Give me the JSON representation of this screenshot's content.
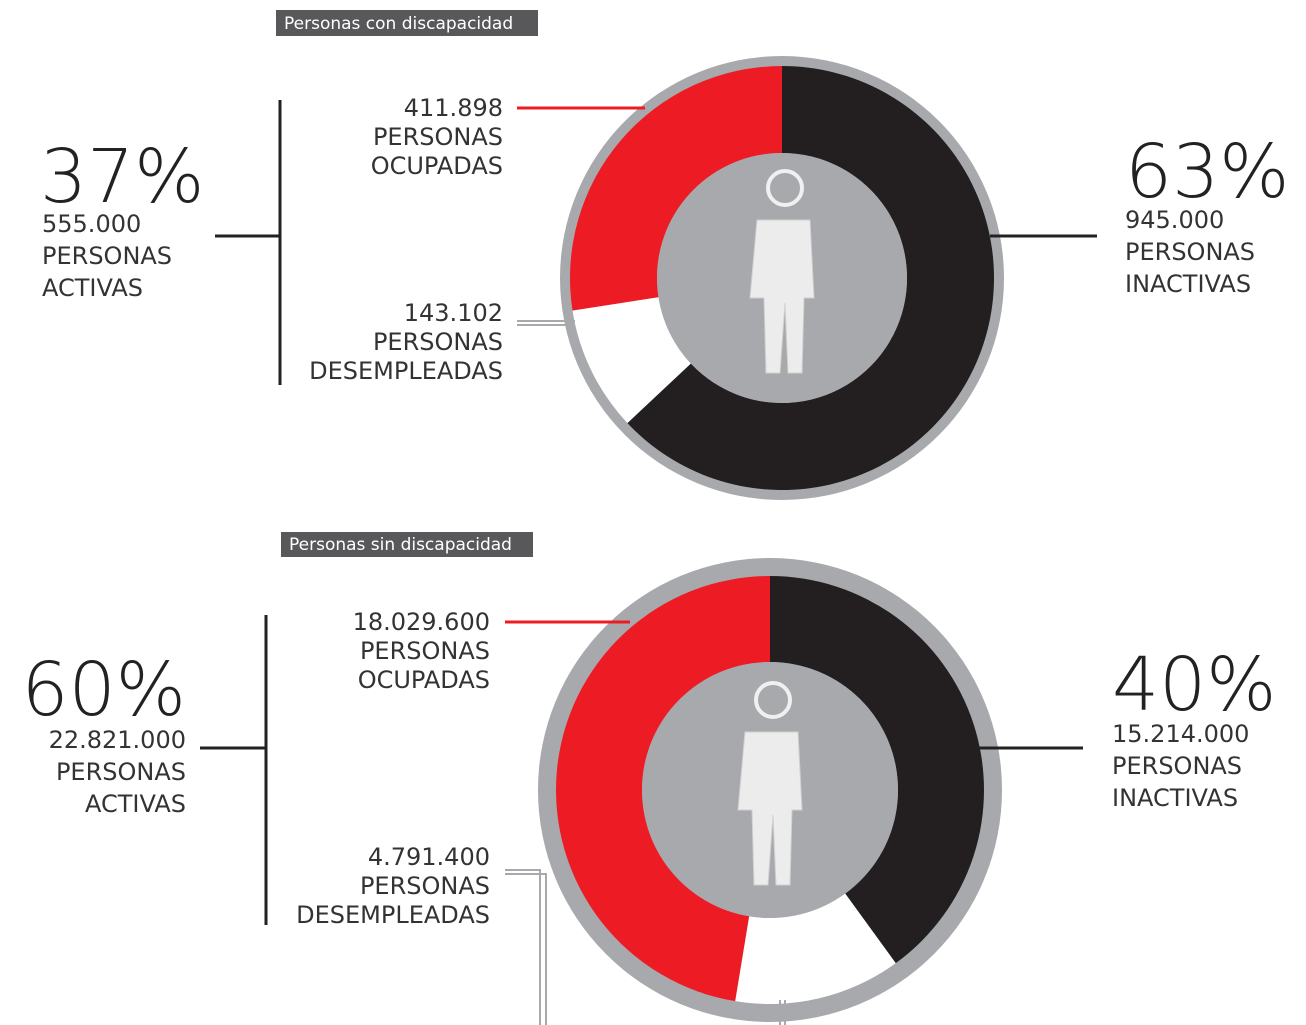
{
  "chart_data": [
    {
      "type": "donut",
      "title": "Personas con discapacidad",
      "categories": [
        [
          "PERSONAS",
          "OCUPADAS"
        ],
        [
          "PERSONAS",
          "DESEMPLEADAS"
        ],
        [
          "PERSONAS",
          "INACTIVAS"
        ]
      ],
      "values": [
        411898,
        143102,
        945000
      ],
      "value_labels": [
        "411.898",
        "143.102",
        "945.000"
      ],
      "colors": [
        "#ed1c24",
        "#ffffff",
        "#231f20"
      ],
      "active": {
        "percent": {
          "value": 37,
          "label": "37%"
        },
        "value": 555000,
        "value_label": "555.000",
        "label": [
          "PERSONAS",
          "ACTIVAS"
        ]
      },
      "inactive_percent": {
        "value": 63,
        "label": "63%"
      }
    },
    {
      "type": "donut",
      "title": "Personas sin discapacidad",
      "categories": [
        [
          "PERSONAS",
          "OCUPADAS"
        ],
        [
          "PERSONAS",
          "DESEMPLEADAS"
        ],
        [
          "PERSONAS",
          "INACTIVAS"
        ]
      ],
      "values": [
        18029600,
        4791400,
        15214000
      ],
      "value_labels": [
        "18.029.600",
        "4.791.400",
        "15.214.000"
      ],
      "colors": [
        "#ed1c24",
        "#ffffff",
        "#231f20"
      ],
      "active": {
        "percent": {
          "value": 60,
          "label": "60%"
        },
        "value": 22821000,
        "value_label": "22.821.000",
        "label": [
          "PERSONAS",
          "ACTIVAS"
        ]
      },
      "inactive_percent": {
        "value": 40,
        "label": "40%"
      }
    }
  ]
}
